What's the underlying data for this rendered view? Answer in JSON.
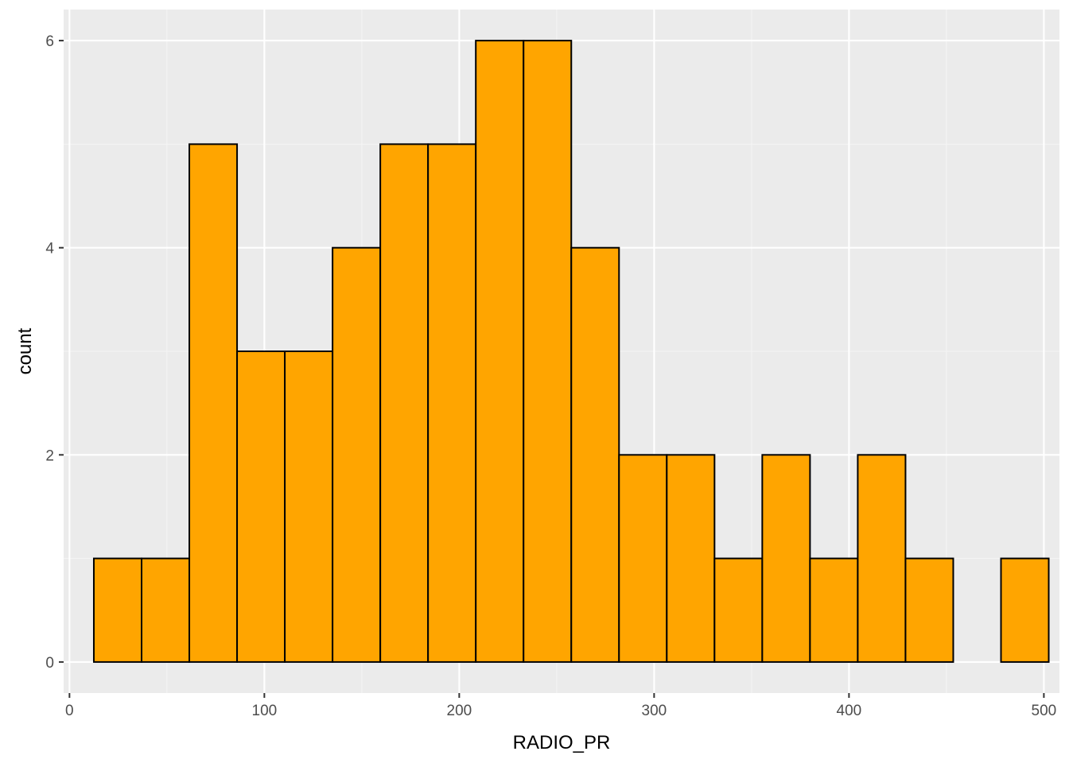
{
  "chart_data": {
    "type": "bar",
    "subtype": "histogram",
    "xlabel": "RADIO_PR",
    "ylabel": "count",
    "xlim": [
      -3,
      508
    ],
    "ylim": [
      -0.3,
      6.3
    ],
    "x_ticks": [
      0,
      100,
      200,
      300,
      400,
      500
    ],
    "y_ticks": [
      0,
      2,
      4,
      6
    ],
    "grid": true,
    "legend": "none",
    "bins": [
      {
        "x0": 12.5,
        "x1": 37.0,
        "count": 1
      },
      {
        "x0": 37.0,
        "x1": 61.5,
        "count": 1
      },
      {
        "x0": 61.5,
        "x1": 86.0,
        "count": 5
      },
      {
        "x0": 86.0,
        "x1": 110.5,
        "count": 3
      },
      {
        "x0": 110.5,
        "x1": 135.0,
        "count": 3
      },
      {
        "x0": 135.0,
        "x1": 159.5,
        "count": 4
      },
      {
        "x0": 159.5,
        "x1": 184.0,
        "count": 5
      },
      {
        "x0": 184.0,
        "x1": 208.5,
        "count": 5
      },
      {
        "x0": 208.5,
        "x1": 233.0,
        "count": 6
      },
      {
        "x0": 233.0,
        "x1": 257.5,
        "count": 6
      },
      {
        "x0": 257.5,
        "x1": 282.0,
        "count": 4
      },
      {
        "x0": 282.0,
        "x1": 306.5,
        "count": 2
      },
      {
        "x0": 306.5,
        "x1": 331.0,
        "count": 2
      },
      {
        "x0": 331.0,
        "x1": 355.5,
        "count": 1
      },
      {
        "x0": 355.5,
        "x1": 380.0,
        "count": 2
      },
      {
        "x0": 380.0,
        "x1": 404.5,
        "count": 1
      },
      {
        "x0": 404.5,
        "x1": 429.0,
        "count": 2
      },
      {
        "x0": 429.0,
        "x1": 453.5,
        "count": 1
      },
      {
        "x0": 453.5,
        "x1": 478.0,
        "count": 0
      },
      {
        "x0": 478.0,
        "x1": 502.5,
        "count": 1
      }
    ],
    "colors": {
      "fill": "#FFA500",
      "outline": "#000000",
      "panel": "#EBEBEB",
      "grid_major": "#FFFFFF",
      "grid_minor": "#F4F4F4",
      "tick_text": "#4D4D4D",
      "tick_mark": "#333333"
    }
  }
}
